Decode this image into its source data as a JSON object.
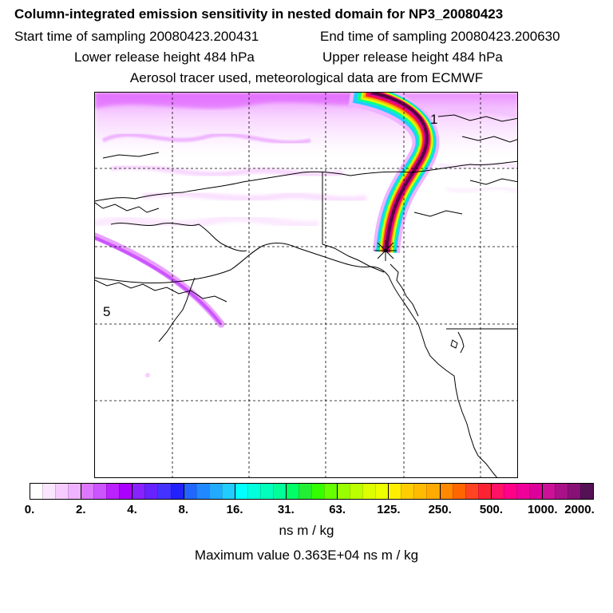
{
  "header": {
    "title": "Column-integrated emission sensitivity in nested domain for NP3_20080423",
    "start_time": "Start time of sampling 20080423.200431",
    "end_time": "End time of sampling 20080423.200630",
    "lower_release": "Lower release height  484 hPa",
    "upper_release": "Upper release height  484 hPa",
    "info": "Aerosol tracer used, meteorological data are from ECMWF"
  },
  "map": {
    "plume_labels": [
      "1",
      "5"
    ],
    "colors": {
      "coastline": "#000000",
      "grid": "#000000",
      "plume_low": "#ee88ff",
      "plume_high": "#5a0040",
      "release_marker": "#000000"
    }
  },
  "colorbar": {
    "tick_labels": [
      "0.",
      "2.",
      "4.",
      "8.",
      "16.",
      "31.",
      "63.",
      "125.",
      "250.",
      "500.",
      "1000.",
      "2000."
    ],
    "colors": [
      "#ffffff",
      "#fbe6ff",
      "#f6ccff",
      "#f0b3ff",
      "#dd77ff",
      "#cc55ff",
      "#bb22ff",
      "#aa00ff",
      "#8822ff",
      "#6622ff",
      "#4433ff",
      "#2222ff",
      "#2266ff",
      "#2288ff",
      "#22aaff",
      "#22ccff",
      "#00ffff",
      "#00ffdd",
      "#00ffbb",
      "#00ff99",
      "#00ff66",
      "#22ee33",
      "#33ff00",
      "#66ff00",
      "#99ff00",
      "#bbff00",
      "#ddff00",
      "#eeff00",
      "#ffee00",
      "#ffcc00",
      "#ffbb00",
      "#ffaa00",
      "#ff8800",
      "#ff6600",
      "#ff4422",
      "#ff2233",
      "#ff1166",
      "#ff0088",
      "#ee0099",
      "#dd0099",
      "#cc1199",
      "#aa1188",
      "#881177",
      "#551155"
    ],
    "unit": "ns m / kg",
    "max_value": "Maximum value  0.363E+04 ns m / kg"
  }
}
